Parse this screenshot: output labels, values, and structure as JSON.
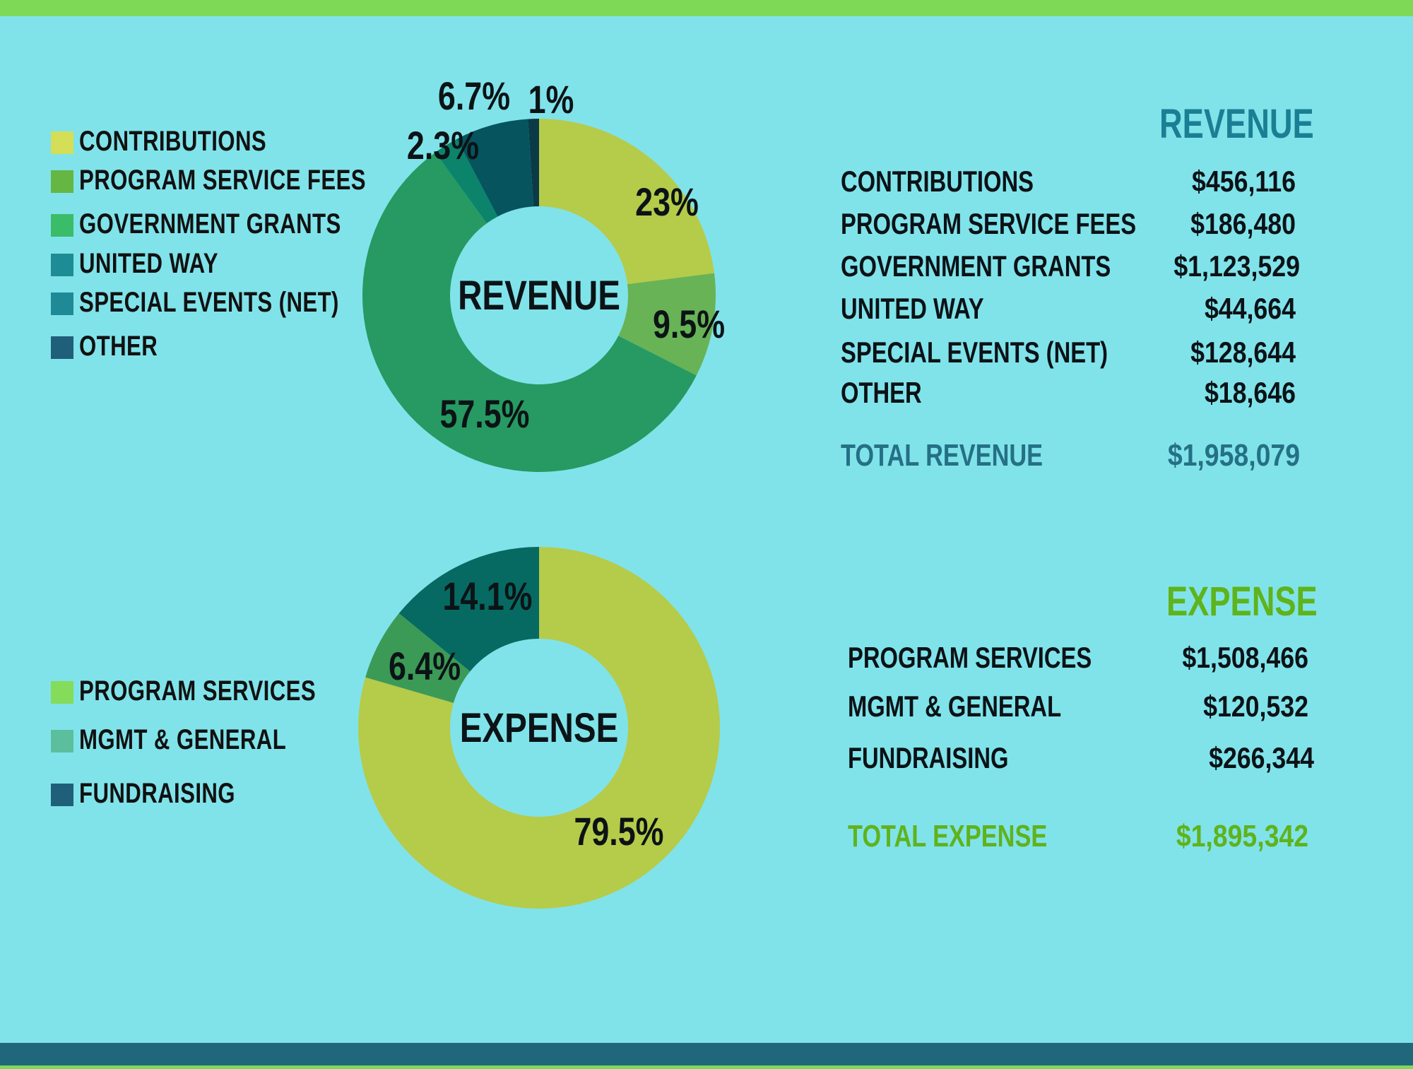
{
  "colors": {
    "background": "#80e3ea",
    "top_bar": "#7ed957",
    "bottom_bar": "#21677b",
    "revenue_accent": "#1b7f94",
    "revenue_total": "#257085",
    "expense_accent": "#5fb31b"
  },
  "revenue_legend": [
    {
      "label": "CONTRIBUTIONS",
      "color": "#d4de56"
    },
    {
      "label": "PROGRAM SERVICE FEES",
      "color": "#65b642"
    },
    {
      "label": "GOVERNMENT GRANTS",
      "color": "#3bbc68"
    },
    {
      "label": "UNITED WAY",
      "color": "#1d8c94"
    },
    {
      "label": "SPECIAL EVENTS (NET)",
      "color": "#1f8a95"
    },
    {
      "label": "OTHER",
      "color": "#1f5f7a"
    }
  ],
  "expense_legend": [
    {
      "label": "PROGRAM SERVICES",
      "color": "#84dc5a"
    },
    {
      "label": "MGMT & GENERAL",
      "color": "#5bbf9d"
    },
    {
      "label": "FUNDRAISING",
      "color": "#1f5f7a"
    }
  ],
  "revenue_table": {
    "title": "REVENUE",
    "rows": [
      {
        "label": "CONTRIBUTIONS",
        "value": "$456,116"
      },
      {
        "label": "PROGRAM SERVICE FEES",
        "value": "$186,480"
      },
      {
        "label": "GOVERNMENT GRANTS",
        "value": "$1,123,529"
      },
      {
        "label": "UNITED WAY",
        "value": "$44,664"
      },
      {
        "label": "SPECIAL EVENTS (NET)",
        "value": "$128,644"
      },
      {
        "label": "OTHER",
        "value": "$18,646"
      }
    ],
    "total_label": "TOTAL REVENUE",
    "total_value": "$1,958,079"
  },
  "expense_table": {
    "title": "EXPENSE",
    "rows": [
      {
        "label": "PROGRAM SERVICES",
        "value": "$1,508,466"
      },
      {
        "label": "MGMT & GENERAL",
        "value": "$120,532"
      },
      {
        "label": "FUNDRAISING",
        "value": "$266,344"
      }
    ],
    "total_label": "TOTAL EXPENSE",
    "total_value": "$1,895,342"
  },
  "chart_data": [
    {
      "type": "pie",
      "variant": "donut",
      "center_label": "REVENUE",
      "categories": [
        "CONTRIBUTIONS",
        "PROGRAM SERVICE FEES",
        "GOVERNMENT GRANTS",
        "UNITED WAY",
        "SPECIAL EVENTS (NET)",
        "OTHER"
      ],
      "values": [
        23,
        9.5,
        57.5,
        2.3,
        6.7,
        1
      ],
      "data_labels": [
        "23%",
        "9.5%",
        "57.5%",
        "2.3%",
        "6.7%",
        "1%"
      ],
      "colors": [
        "#b5cb4a",
        "#68b356",
        "#269a62",
        "#0c846b",
        "#05545e",
        "#0b3a47"
      ],
      "start": "12 o'clock",
      "direction": "clockwise"
    },
    {
      "type": "pie",
      "variant": "donut",
      "center_label": "EXPENSE",
      "categories": [
        "PROGRAM SERVICES",
        "MGMT & GENERAL",
        "FUNDRAISING"
      ],
      "values": [
        79.5,
        6.4,
        14.1
      ],
      "data_labels": [
        "79.5%",
        "6.4%",
        "14.1%"
      ],
      "colors": [
        "#b5cb4a",
        "#3b9a56",
        "#066a62"
      ],
      "start": "12 o'clock",
      "direction": "clockwise"
    }
  ]
}
